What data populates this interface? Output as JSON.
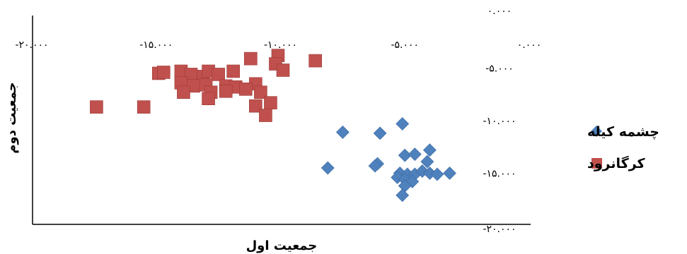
{
  "chart_data": {
    "type": "scatter",
    "xlabel": "جمعیت اول",
    "ylabel": "جمعیت دوم",
    "xlim": [
      -20,
      0
    ],
    "ylim": [
      -20,
      0
    ],
    "x_ticks": [
      -20,
      -15,
      -10,
      -5,
      0
    ],
    "y_ticks": [
      0,
      -5,
      -10,
      -15,
      -20
    ],
    "x_tick_labels": [
      "-۲۰.۰۰۰",
      "-۱۵.۰۰۰",
      "-۱۰.۰۰۰",
      "-۵.۰۰۰",
      "۰.۰۰۰"
    ],
    "y_tick_labels": [
      "۰.۰۰۰",
      "-۵.۰۰۰",
      "-۱۰.۰۰۰",
      "-۱۵.۰۰۰",
      "-۲۰.۰۰۰"
    ],
    "legend_position": "right",
    "grid": false,
    "series": [
      {
        "name": "چشمه کیله",
        "color": "#4F81BD",
        "marker": "diamond",
        "points": [
          [
            -5.1,
            -10.3
          ],
          [
            -7.5,
            -11.1
          ],
          [
            -6.0,
            -11.2
          ],
          [
            -5.0,
            -13.3
          ],
          [
            -4.6,
            -13.2
          ],
          [
            -4.0,
            -12.8
          ],
          [
            -6.1,
            -14.1
          ],
          [
            -6.2,
            -14.3
          ],
          [
            -8.1,
            -14.5
          ],
          [
            -4.1,
            -13.9
          ],
          [
            -3.2,
            -15.0
          ],
          [
            -5.2,
            -15.0
          ],
          [
            -4.9,
            -15.1
          ],
          [
            -4.6,
            -15.1
          ],
          [
            -4.3,
            -14.8
          ],
          [
            -4.0,
            -15.0
          ],
          [
            -3.7,
            -15.1
          ],
          [
            -5.3,
            -15.4
          ],
          [
            -5.0,
            -15.6
          ],
          [
            -4.7,
            -15.8
          ],
          [
            -5.0,
            -16.2
          ],
          [
            -5.1,
            -17.1
          ]
        ]
      },
      {
        "name": "کرگانرود",
        "color": "#C0504D",
        "marker": "square",
        "points": [
          [
            -17.4,
            -8.7
          ],
          [
            -15.5,
            -8.7
          ],
          [
            -14.9,
            -5.5
          ],
          [
            -14.7,
            -5.4
          ],
          [
            -14.0,
            -5.3
          ],
          [
            -13.6,
            -5.6
          ],
          [
            -13.1,
            -5.8
          ],
          [
            -12.9,
            -5.3
          ],
          [
            -12.5,
            -5.6
          ],
          [
            -11.9,
            -5.3
          ],
          [
            -11.2,
            -4.1
          ],
          [
            -10.1,
            -3.8
          ],
          [
            -10.2,
            -4.6
          ],
          [
            -9.9,
            -5.2
          ],
          [
            -8.6,
            -4.3
          ],
          [
            -14.0,
            -6.4
          ],
          [
            -13.5,
            -6.7
          ],
          [
            -13.0,
            -6.6
          ],
          [
            -12.2,
            -6.7
          ],
          [
            -11.8,
            -6.8
          ],
          [
            -11.0,
            -6.5
          ],
          [
            -13.9,
            -7.3
          ],
          [
            -12.8,
            -7.3
          ],
          [
            -12.2,
            -7.2
          ],
          [
            -11.4,
            -7.0
          ],
          [
            -10.8,
            -7.3
          ],
          [
            -12.9,
            -7.9
          ],
          [
            -11.0,
            -8.6
          ],
          [
            -10.4,
            -8.3
          ],
          [
            -10.6,
            -9.5
          ]
        ]
      }
    ]
  }
}
